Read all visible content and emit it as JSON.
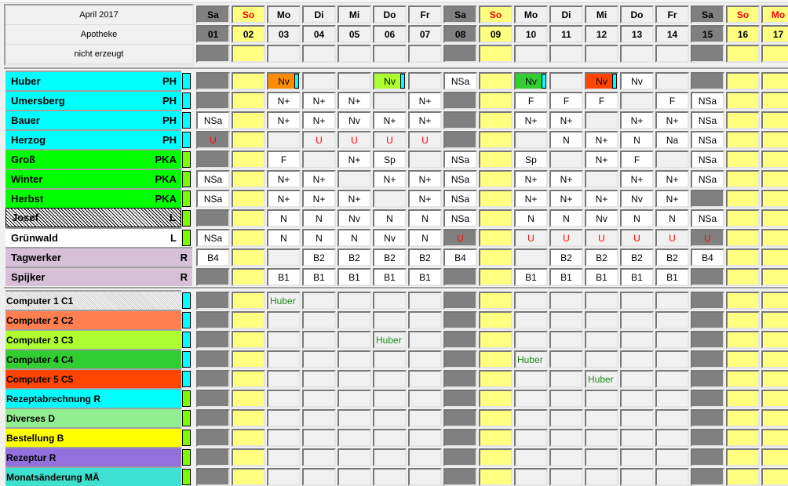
{
  "header": {
    "month": "April 2017",
    "site": "Apotheke",
    "status": "nicht erzeugt"
  },
  "days": [
    {
      "wd": "Sa",
      "d": "01",
      "type": "sat"
    },
    {
      "wd": "So",
      "d": "02",
      "type": "sun"
    },
    {
      "wd": "Mo",
      "d": "03",
      "type": "wd"
    },
    {
      "wd": "Di",
      "d": "04",
      "type": "wd"
    },
    {
      "wd": "Mi",
      "d": "05",
      "type": "wd"
    },
    {
      "wd": "Do",
      "d": "06",
      "type": "wd"
    },
    {
      "wd": "Fr",
      "d": "07",
      "type": "wd"
    },
    {
      "wd": "Sa",
      "d": "08",
      "type": "sat"
    },
    {
      "wd": "So",
      "d": "09",
      "type": "sun"
    },
    {
      "wd": "Mo",
      "d": "10",
      "type": "wd"
    },
    {
      "wd": "Di",
      "d": "11",
      "type": "wd"
    },
    {
      "wd": "Mi",
      "d": "12",
      "type": "wd"
    },
    {
      "wd": "Do",
      "d": "13",
      "type": "wd"
    },
    {
      "wd": "Fr",
      "d": "14",
      "type": "wd"
    },
    {
      "wd": "Sa",
      "d": "15",
      "type": "sat"
    },
    {
      "wd": "So",
      "d": "16",
      "type": "sun"
    },
    {
      "wd": "Mo",
      "d": "17",
      "type": "holiday"
    }
  ],
  "colors": {
    "saturday": "#808080",
    "sunday": "#ffff80",
    "filled": "#ffffff",
    "empty": "#f0f0f0",
    "vacation_text": "#ff0000",
    "computer_text": "#1a8a1a"
  },
  "staff": [
    {
      "name": "Huber",
      "role": "PH",
      "color": "#00ffff",
      "marker": "#00ffff",
      "cells": [
        "",
        "",
        {
          "t": "Nv",
          "bg": "#ff8c00"
        },
        "",
        "",
        {
          "t": "Nv",
          "bg": "#adff2f"
        },
        "",
        "NSa",
        "",
        {
          "t": "Nv",
          "bg": "#32cd32"
        },
        "",
        {
          "t": "Nv",
          "bg": "#ff4500"
        },
        "Nv",
        "",
        "",
        "",
        ""
      ]
    },
    {
      "name": "Umersberg",
      "role": "PH",
      "color": "#00ffff",
      "marker": "#00ffff",
      "cells": [
        "",
        "",
        "N+",
        "N+",
        "N+",
        "",
        "N+",
        "",
        "",
        "F",
        "F",
        "F",
        "",
        "F",
        "NSa",
        "",
        ""
      ]
    },
    {
      "name": "Bauer",
      "role": "PH",
      "color": "#00ffff",
      "marker": "#00ffff",
      "cells": [
        "NSa",
        "",
        "N+",
        "N+",
        "Nv",
        "N+",
        "N+",
        "",
        "",
        "N+",
        "N+",
        "",
        "N+",
        "N+",
        "NSa",
        "",
        ""
      ]
    },
    {
      "name": "Herzog",
      "role": "PH",
      "color": "#00ffff",
      "marker": "#00ffff",
      "cells": [
        "U",
        "",
        "",
        "U",
        "U",
        "U",
        "U",
        "",
        "",
        "",
        "N",
        "N+",
        "N",
        "Na",
        "NSa",
        "",
        ""
      ]
    },
    {
      "name": "Groß",
      "role": "PKA",
      "color": "#00ff00",
      "marker": "#7cfc00",
      "cells": [
        "",
        "",
        "F",
        "",
        "N+",
        "Sp",
        "",
        "NSa",
        "",
        "Sp",
        "",
        "N+",
        "F",
        "",
        "NSa",
        "",
        ""
      ]
    },
    {
      "name": "Winter",
      "role": "PKA",
      "color": "#00ff00",
      "marker": "#7cfc00",
      "cells": [
        "NSa",
        "",
        "N+",
        "N+",
        "",
        "N+",
        "N+",
        "NSa",
        "",
        "N+",
        "N+",
        "",
        "N+",
        "N+",
        "NSa",
        "",
        ""
      ]
    },
    {
      "name": "Herbst",
      "role": "PKA",
      "color": "#00ff00",
      "marker": "#7cfc00",
      "cells": [
        "NSa",
        "",
        "N+",
        "N+",
        "N+",
        "",
        "N+",
        "NSa",
        "",
        "N+",
        "N+",
        "N+",
        "Nv",
        "N+",
        "",
        "",
        ""
      ]
    },
    {
      "name": "Josef",
      "role": "L",
      "color": "hatched",
      "marker": "#7cfc00",
      "cells": [
        "",
        "",
        "N",
        "N",
        "Nv",
        "N",
        "N",
        "NSa",
        "",
        "N",
        "N",
        "Nv",
        "N",
        "N",
        "NSa",
        "",
        ""
      ]
    },
    {
      "name": "Grünwald",
      "role": "L",
      "color": "#ffffff",
      "marker": "#7cfc00",
      "cells": [
        "NSa",
        "",
        "N",
        "N",
        "N",
        "Nv",
        "N",
        "U",
        "",
        "U",
        "U",
        "U",
        "U",
        "U",
        "U",
        "",
        ""
      ]
    },
    {
      "name": "Tagwerker",
      "role": "R",
      "color": "#d8bfd8",
      "marker": "",
      "cells": [
        "B4",
        "",
        "",
        "B2",
        "B2",
        "B2",
        "B2",
        "B4",
        "",
        "",
        "B2",
        "B2",
        "B2",
        "B2",
        "B4",
        "",
        ""
      ]
    },
    {
      "name": "Spijker",
      "role": "R",
      "color": "#d8bfd8",
      "marker": "",
      "cells": [
        "",
        "",
        "B1",
        "B1",
        "B1",
        "B1",
        "B1",
        "",
        "",
        "B1",
        "B1",
        "B1",
        "B1",
        "B1",
        "",
        "",
        ""
      ]
    }
  ],
  "resources": [
    {
      "name": "Computer 1 C1",
      "color": "hatched-light",
      "marker": "#00ffff",
      "cells": [
        "",
        "",
        "Huber",
        "",
        "",
        "",
        "",
        "",
        "",
        "",
        "",
        "",
        "",
        "",
        "",
        "",
        ""
      ]
    },
    {
      "name": "Computer 2 C2",
      "color": "#ff7f50",
      "marker": "#00ffff",
      "cells": [
        "",
        "",
        "",
        "",
        "",
        "",
        "",
        "",
        "",
        "",
        "",
        "",
        "",
        "",
        "",
        "",
        ""
      ]
    },
    {
      "name": "Computer 3 C3",
      "color": "#adff2f",
      "marker": "#00ffff",
      "cells": [
        "",
        "",
        "",
        "",
        "",
        "Huber",
        "",
        "",
        "",
        "",
        "",
        "",
        "",
        "",
        "",
        "",
        ""
      ]
    },
    {
      "name": "Computer 4 C4",
      "color": "#32cd32",
      "marker": "#00ffff",
      "cells": [
        "",
        "",
        "",
        "",
        "",
        "",
        "",
        "",
        "",
        "Huber",
        "",
        "",
        "",
        "",
        "",
        "",
        ""
      ]
    },
    {
      "name": "Computer 5 C5",
      "color": "#ff4500",
      "marker": "#00ffff",
      "cells": [
        "",
        "",
        "",
        "",
        "",
        "",
        "",
        "",
        "",
        "",
        "",
        "Huber",
        "",
        "",
        "",
        "",
        ""
      ]
    },
    {
      "name": "Rezeptabrechnung R",
      "color": "#00ffff",
      "marker": "#7cfc00",
      "cells": [
        "",
        "",
        "",
        "",
        "",
        "",
        "",
        "",
        "",
        "",
        "",
        "",
        "",
        "",
        "",
        "",
        ""
      ]
    },
    {
      "name": "Diverses D",
      "color": "#90ee90",
      "marker": "#7cfc00",
      "cells": [
        "",
        "",
        "",
        "",
        "",
        "",
        "",
        "",
        "",
        "",
        "",
        "",
        "",
        "",
        "",
        "",
        ""
      ]
    },
    {
      "name": "Bestellung B",
      "color": "#ffff00",
      "marker": "#7cfc00",
      "cells": [
        "",
        "",
        "",
        "",
        "",
        "",
        "",
        "",
        "",
        "",
        "",
        "",
        "",
        "",
        "",
        "",
        ""
      ]
    },
    {
      "name": "Rezeptur R",
      "color": "#9370db",
      "marker": "#7cfc00",
      "cells": [
        "",
        "",
        "",
        "",
        "",
        "",
        "",
        "",
        "",
        "",
        "",
        "",
        "",
        "",
        "",
        "",
        ""
      ]
    },
    {
      "name": "Monatsänderung MÄ",
      "color": "#40e0d0",
      "marker": "#7cfc00",
      "cells": [
        "",
        "",
        "",
        "",
        "",
        "",
        "",
        "",
        "",
        "",
        "",
        "",
        "",
        "",
        "",
        "",
        ""
      ]
    }
  ]
}
